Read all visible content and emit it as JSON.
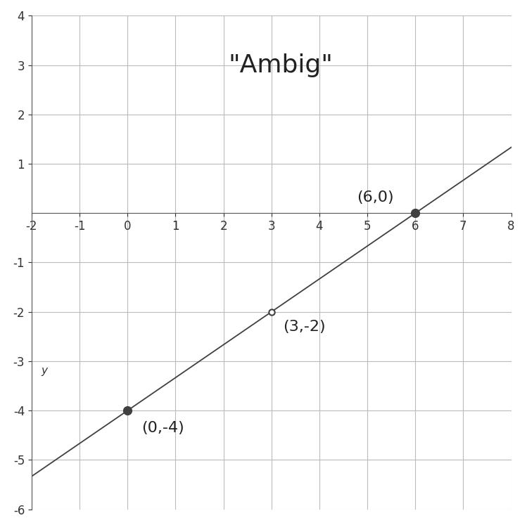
{
  "chart_data": {
    "type": "line",
    "title": "\"Ambig\"",
    "y_label": "y",
    "series": [
      {
        "x": [
          0,
          6
        ],
        "values": [
          -4,
          0
        ],
        "marker": "filled",
        "color": "#404040"
      },
      {
        "x": [
          3
        ],
        "values": [
          -2
        ],
        "marker": "open",
        "color": "#404040"
      }
    ],
    "annotations": [
      {
        "x": 6,
        "y": 0,
        "text": "(6,0)"
      },
      {
        "x": 3,
        "y": -2,
        "text": "(3,-2)"
      },
      {
        "x": 0,
        "y": -4,
        "text": "(0,-4)"
      }
    ],
    "xlim": [
      -2,
      8
    ],
    "xticks": [
      -2,
      -1,
      0,
      1,
      2,
      3,
      4,
      5,
      6,
      7,
      8
    ],
    "ylim": [
      -6,
      4
    ],
    "yticks": [
      -6,
      -5,
      -4,
      -3,
      -2,
      -1,
      1,
      2,
      3,
      4
    ],
    "grid": true
  }
}
